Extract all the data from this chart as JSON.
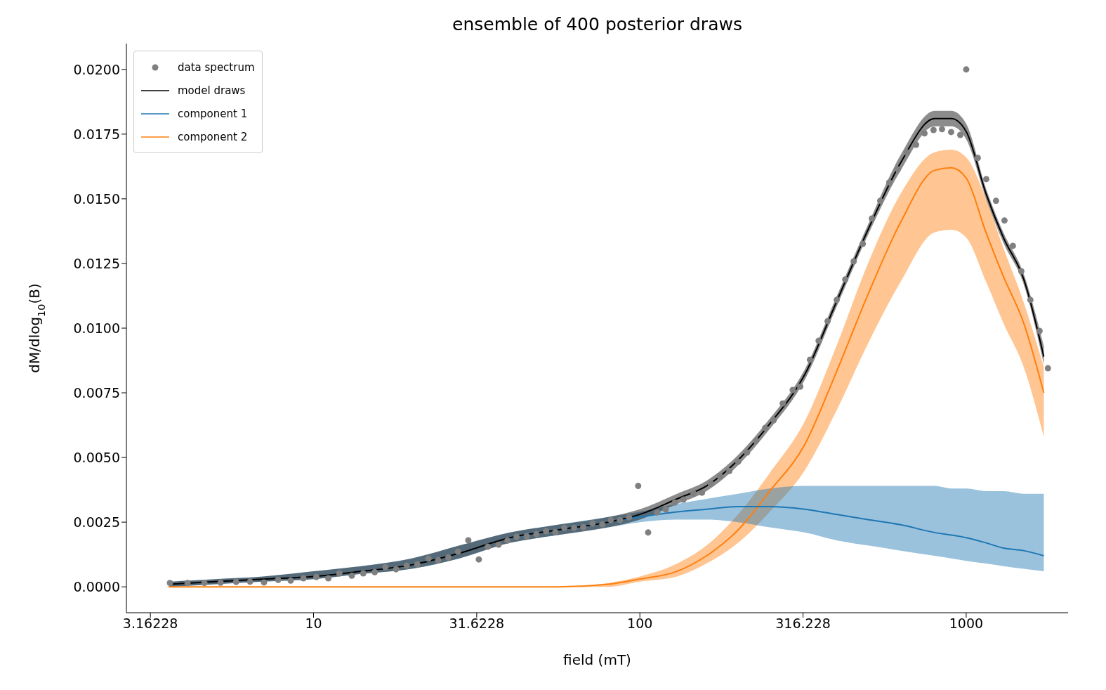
{
  "chart_data": {
    "type": "line",
    "title": "ensemble of 400 posterior draws",
    "xlabel": "field (mT)",
    "ylabel": "dM/dlog$_{10}$(B)",
    "log": "x",
    "legend": "top left",
    "xlim": [
      2.67,
      2052
    ],
    "xticks": [
      3.16228,
      10,
      31.6228,
      100,
      316.228,
      1000
    ],
    "ylim": [
      -0.001,
      0.021
    ],
    "yticks": [
      {
        "value": 0,
        "label": "0.0000"
      },
      {
        "value": 0.0025,
        "label": "0.0025"
      },
      {
        "value": 0.005,
        "label": "0.0050"
      },
      {
        "value": 0.0075,
        "label": "0.0075"
      },
      {
        "value": 0.01,
        "label": "0.0100"
      },
      {
        "value": 0.0125,
        "label": "0.0125"
      },
      {
        "value": 0.015,
        "label": "0.0150"
      },
      {
        "value": 0.0175,
        "label": "0.0175"
      },
      {
        "value": 0.02,
        "label": "0.0200"
      }
    ],
    "series": [
      {
        "name": "data spectrum",
        "type": "scatter",
        "marker": "circle",
        "color": "#808080",
        "x": [
          3.63,
          4.11,
          4.63,
          5.19,
          5.79,
          6.39,
          7.05,
          7.79,
          8.51,
          9.31,
          10.2,
          11.1,
          12.0,
          13.1,
          14.2,
          15.4,
          16.6,
          17.9,
          19.3,
          20.8,
          22.5,
          24.1,
          25.9,
          27.7,
          29.8,
          32.1,
          34.2,
          36.9,
          39.3,
          41.9,
          45.0,
          48.2,
          51.6,
          55.1,
          58.7,
          62.9,
          67.1,
          71.6,
          76.7,
          81.4,
          86.9,
          92.6,
          98.8,
          106,
          113,
          120,
          128,
          136,
          146,
          155,
          165,
          176,
          188,
          200,
          213,
          227,
          242,
          257,
          274,
          294,
          310,
          332,
          353,
          376,
          401,
          426,
          452,
          482,
          514,
          545,
          581,
          617,
          658,
          702,
          745,
          794,
          843,
          899,
          959,
          1000,
          1085,
          1152,
          1234,
          1310,
          1390,
          1475,
          1573,
          1678,
          1780
        ],
        "values": [
          0.00015,
          0.00015,
          0.00015,
          0.00016,
          0.00019,
          0.0002,
          0.00017,
          0.00027,
          0.00024,
          0.00033,
          0.00038,
          0.00033,
          0.00052,
          0.00043,
          0.00052,
          0.00057,
          0.00076,
          0.00068,
          0.00082,
          0.00087,
          0.00109,
          0.00103,
          0.00114,
          0.00136,
          0.0018,
          0.00106,
          0.00155,
          0.00163,
          0.00179,
          0.00193,
          0.00196,
          0.00204,
          0.00215,
          0.00212,
          0.00228,
          0.00228,
          0.00231,
          0.00245,
          0.00242,
          0.00258,
          0.00258,
          0.00269,
          0.0039,
          0.0021,
          0.00288,
          0.00299,
          0.00326,
          0.00337,
          0.00361,
          0.00364,
          0.00399,
          0.00427,
          0.00448,
          0.00484,
          0.00519,
          0.00565,
          0.00614,
          0.00644,
          0.00709,
          0.00761,
          0.00774,
          0.00878,
          0.00951,
          0.01027,
          0.01109,
          0.01188,
          0.01258,
          0.01326,
          0.01424,
          0.01492,
          0.01563,
          0.01614,
          0.01679,
          0.01709,
          0.01753,
          0.01766,
          0.01769,
          0.01758,
          0.01747,
          0.02,
          0.01658,
          0.01576,
          0.01492,
          0.01416,
          0.01318,
          0.0122,
          0.01109,
          0.00989,
          0.00845
        ]
      },
      {
        "name": "model draws",
        "color": "#000000",
        "x": [
          3.6,
          5,
          7,
          10,
          14,
          20,
          28,
          40,
          56,
          80,
          100,
          130,
          160,
          200,
          250,
          320,
          400,
          500,
          630,
          800,
          900,
          1000,
          1150,
          1300,
          1500,
          1729
        ],
        "values": [
          0.0001,
          0.0002,
          0.0003,
          0.0004,
          0.0006,
          0.00085,
          0.0013,
          0.0019,
          0.0022,
          0.0025,
          0.0028,
          0.0034,
          0.0039,
          0.0049,
          0.0063,
          0.0082,
          0.011,
          0.0138,
          0.0164,
          0.0181,
          0.0181,
          0.0176,
          0.0152,
          0.0135,
          0.0119,
          0.0089
        ],
        "lower": [
          0,
          0.0001,
          0.0002,
          0.0003,
          0.0005,
          0.0007,
          0.0011,
          0.0017,
          0.002,
          0.0023,
          0.0026,
          0.0032,
          0.0037,
          0.0047,
          0.0061,
          0.008,
          0.0108,
          0.0136,
          0.0161,
          0.0178,
          0.0178,
          0.0173,
          0.015,
          0.0133,
          0.0117,
          0.0086
        ],
        "upper": [
          0.0002,
          0.0003,
          0.0004,
          0.0006,
          0.0008,
          0.0011,
          0.0016,
          0.0021,
          0.0024,
          0.0027,
          0.003,
          0.0036,
          0.0041,
          0.0051,
          0.0065,
          0.0084,
          0.0112,
          0.014,
          0.0167,
          0.0184,
          0.0184,
          0.0179,
          0.0154,
          0.0137,
          0.0121,
          0.0093
        ]
      },
      {
        "name": "component 1",
        "color": "#1f77b4",
        "x": [
          3.6,
          5,
          7,
          10,
          14,
          20,
          28,
          40,
          56,
          80,
          100,
          130,
          160,
          200,
          250,
          320,
          400,
          500,
          630,
          800,
          900,
          1000,
          1150,
          1300,
          1500,
          1729
        ],
        "values": [
          null,
          null,
          null,
          null,
          null,
          null,
          null,
          0.0019,
          0.0022,
          0.0025,
          0.0027,
          0.0029,
          0.003,
          0.0031,
          0.0031,
          0.003,
          0.0028,
          0.0026,
          0.0024,
          0.0021,
          0.002,
          0.0019,
          0.0017,
          0.0015,
          0.0014,
          0.0012
        ],
        "lower": [
          0,
          0.0001,
          0.0002,
          0.0003,
          0.0005,
          0.0007,
          0.0011,
          0.0017,
          0.002,
          0.0023,
          0.0025,
          0.0026,
          0.0026,
          0.0025,
          0.0023,
          0.0021,
          0.0018,
          0.0016,
          0.0014,
          0.0012,
          0.0011,
          0.001,
          0.0009,
          0.0008,
          0.0007,
          0.0006
        ],
        "upper": [
          0.0002,
          0.0003,
          0.0004,
          0.0006,
          0.0008,
          0.0011,
          0.0016,
          0.0021,
          0.0024,
          0.0027,
          0.0029,
          0.0032,
          0.0034,
          0.0036,
          0.0038,
          0.0039,
          0.0039,
          0.0039,
          0.0039,
          0.0039,
          0.0038,
          0.0038,
          0.0037,
          0.0037,
          0.0036,
          0.0036
        ]
      },
      {
        "name": "component 2",
        "color": "#ff7f0e",
        "x": [
          3.6,
          5,
          7,
          10,
          14,
          20,
          28,
          40,
          56,
          80,
          100,
          130,
          160,
          200,
          250,
          320,
          400,
          500,
          630,
          800,
          900,
          1000,
          1150,
          1300,
          1500,
          1729
        ],
        "values": [
          0,
          0,
          0,
          0,
          0,
          0,
          0,
          0,
          0,
          0.0001,
          0.0003,
          0.0006,
          0.0012,
          0.0022,
          0.0037,
          0.0055,
          0.0083,
          0.0113,
          0.0141,
          0.0161,
          0.0162,
          0.0158,
          0.0137,
          0.012,
          0.0102,
          0.0075
        ],
        "lower": [
          0,
          0,
          0,
          0,
          0,
          0,
          0,
          0,
          0,
          0,
          0.0002,
          0.0004,
          0.0009,
          0.0017,
          0.0029,
          0.0045,
          0.0068,
          0.0094,
          0.0118,
          0.0137,
          0.0138,
          0.0135,
          0.0118,
          0.0102,
          0.0085,
          0.0058
        ],
        "upper": [
          0,
          0,
          0,
          0,
          0,
          0,
          0,
          0,
          0,
          0.00015,
          0.0004,
          0.0009,
          0.0016,
          0.0028,
          0.0044,
          0.0064,
          0.0093,
          0.0125,
          0.0152,
          0.0168,
          0.0169,
          0.0166,
          0.015,
          0.0131,
          0.011,
          0.0085
        ]
      }
    ]
  }
}
